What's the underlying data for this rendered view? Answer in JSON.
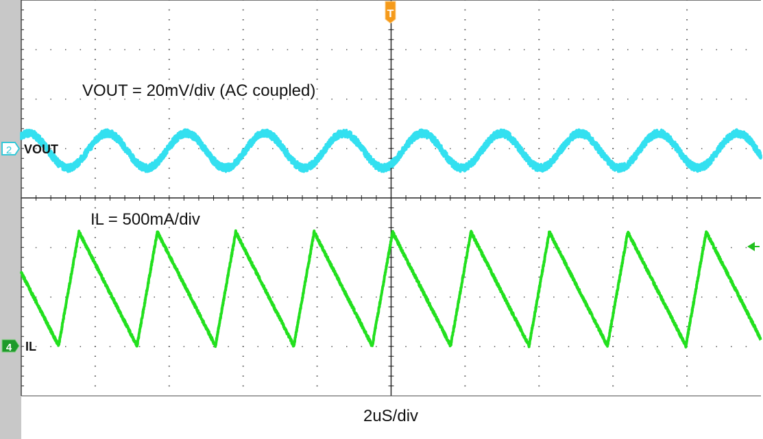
{
  "chart_data": {
    "type": "line",
    "title": "",
    "xlabel": "2uS/div",
    "xlim": [
      -10,
      10
    ],
    "x_unit": "us",
    "divisions": {
      "horizontal": 10,
      "vertical": 8
    },
    "grid": true,
    "trigger_marker": "T",
    "annotations": [
      "VOUT = 20mV/div (AC coupled)",
      "IL = 500mA/div"
    ],
    "series": [
      {
        "name": "VOUT",
        "channel": "2",
        "color": "#33E0F0",
        "unit": "mV",
        "scale_per_div": 20,
        "waveform": "sine",
        "period_us": 2.13,
        "first_peak_us": -7.67,
        "amplitude": 7,
        "offset": -0.8,
        "noise": 1.5
      },
      {
        "name": "IL",
        "channel": "4",
        "color": "#22E01E",
        "unit": "mA",
        "scale_per_div": 500,
        "waveform": "sawtooth",
        "period_us": 2.12,
        "peak_us": 0.04,
        "rise_us": 0.55,
        "min": 0,
        "max": 1150,
        "noise": 15
      }
    ]
  },
  "colors": {
    "background": "#ffffff",
    "left_strip": "#c8c8c8",
    "grid": "#000000",
    "trigger": "#F59A1A",
    "ch4_marker": "#1E9A2A",
    "ch2_marker": "#33C8D8"
  }
}
